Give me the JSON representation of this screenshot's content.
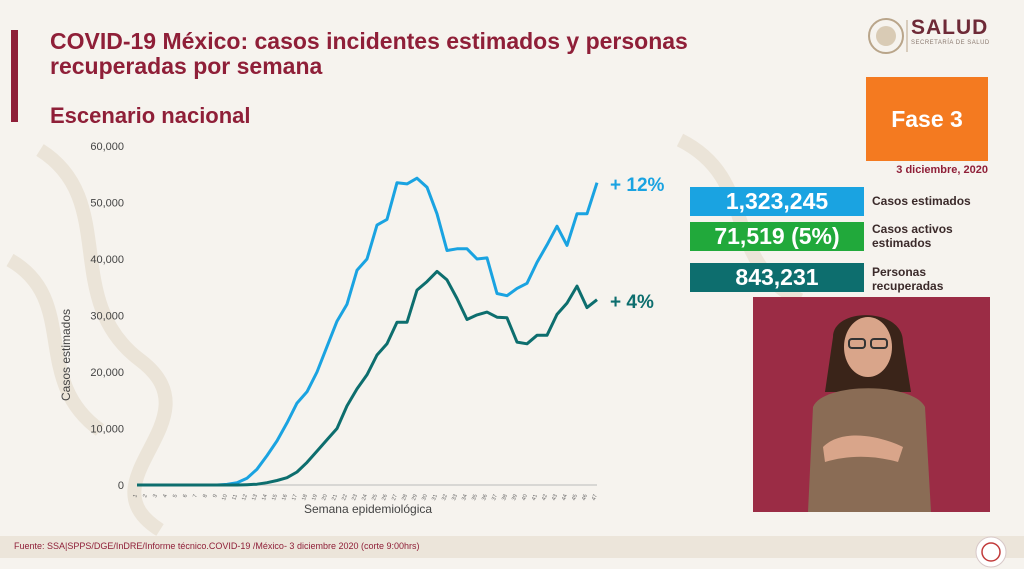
{
  "header": {
    "title": "COVID-19 México: casos incidentes estimados y personas recuperadas por semana",
    "subtitle": "Escenario nacional",
    "logo_text": "SALUD",
    "logo_sub": "SECRETARÍA DE SALUD"
  },
  "side": {
    "phase": "Fase 3",
    "date": "3 diciembre, 2020",
    "cases_value": "1,323,245",
    "cases_label": "Casos estimados",
    "active_value": "71,519 (5%)",
    "active_label_1": "Casos activos",
    "active_label_2": "estimados",
    "recovered_value": "843,231",
    "recovered_label_1": "Personas",
    "recovered_label_2": "recuperadas"
  },
  "footer": {
    "source": "Fuente: SSA|SPPS/DGE/InDRE/Informe técnico.COVID-19 /México- 3 diciembre 2020 (corte 9:00hrs)"
  },
  "colors": {
    "maroon": "#8f1f38",
    "series_cases": "#1aa3e1",
    "series_recovered": "#0d6e6e",
    "active_green": "#21a93b",
    "phase_orange": "#f47a20"
  },
  "chart_data": {
    "type": "line",
    "xlabel": "Semana epidemiológica",
    "ylabel": "Casos estimados",
    "ylim": [
      0,
      60000
    ],
    "yticks": [
      0,
      10000,
      20000,
      30000,
      40000,
      50000,
      60000
    ],
    "ytick_labels": [
      "0",
      "10,000",
      "20,000",
      "30,000",
      "40,000",
      "50,000",
      "60,000"
    ],
    "x": [
      1,
      2,
      3,
      4,
      5,
      6,
      7,
      8,
      9,
      10,
      11,
      12,
      13,
      14,
      15,
      16,
      17,
      18,
      19,
      20,
      21,
      22,
      23,
      24,
      25,
      26,
      27,
      28,
      29,
      30,
      31,
      32,
      33,
      34,
      35,
      36,
      37,
      38,
      39,
      40,
      41,
      42,
      43,
      44,
      45,
      46,
      47
    ],
    "series": [
      {
        "values": [
          0,
          0,
          0,
          0,
          0,
          0,
          0,
          0,
          0,
          100,
          400,
          1200,
          2800,
          5200,
          7800,
          11000,
          14500,
          16500,
          20000,
          24500,
          29000,
          32000,
          38000,
          40000,
          46000,
          47000,
          53500,
          53300,
          54300,
          52700,
          48000,
          41500,
          41800,
          41800,
          40000,
          40200,
          33900,
          33500,
          34800,
          35700,
          39400,
          42500,
          45800,
          42400,
          48000,
          48000,
          53500
        ],
        "label": "+ 12%"
      },
      {
        "values": [
          0,
          0,
          0,
          0,
          0,
          0,
          0,
          0,
          0,
          0,
          0,
          50,
          150,
          400,
          800,
          1300,
          2300,
          4000,
          6000,
          8000,
          10000,
          14000,
          17000,
          19500,
          23000,
          25000,
          28800,
          28800,
          34500,
          36000,
          37800,
          36300,
          33000,
          29300,
          30100,
          30600,
          29700,
          29600,
          25300,
          25000,
          26500,
          26500,
          30200,
          32200,
          35200,
          31400,
          32800
        ],
        "label": "+ 4%"
      }
    ]
  }
}
